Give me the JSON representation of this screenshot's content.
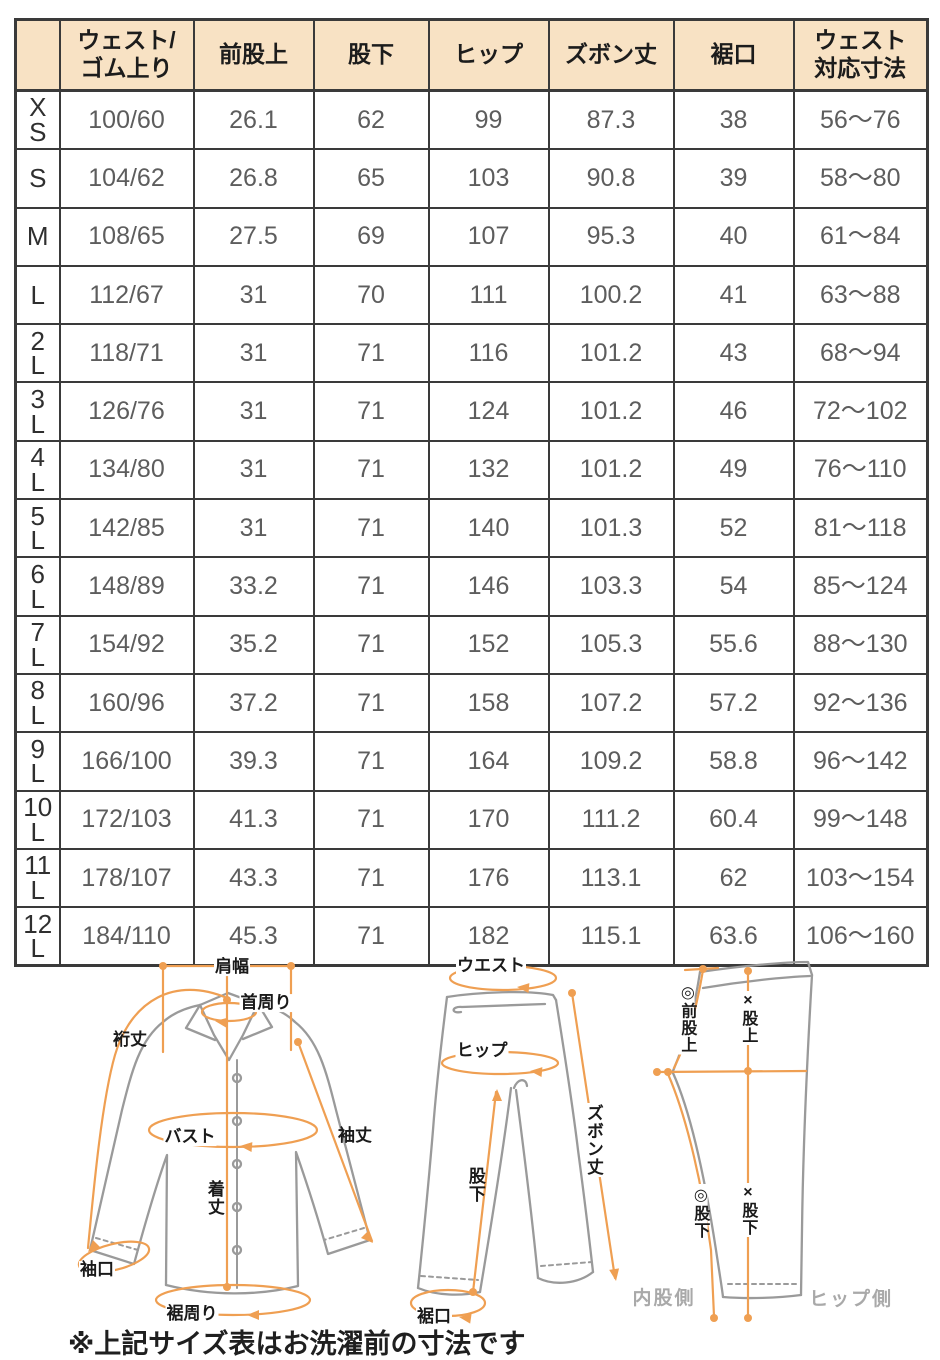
{
  "colors": {
    "header_bg": "#f8e2c4",
    "table_border": "#3a3a3a",
    "value_text": "#5d5d5d",
    "annotation_orange": "#ef9f52",
    "garment_outline_gray": "#9a9a9a",
    "side_label_gray": "#a9a9a9"
  },
  "table": {
    "header": [
      {
        "lines": [
          ""
        ]
      },
      {
        "lines": [
          "ウェスト/",
          "ゴム上り"
        ]
      },
      {
        "lines": [
          "前股上"
        ]
      },
      {
        "lines": [
          "股下"
        ]
      },
      {
        "lines": [
          "ヒップ"
        ]
      },
      {
        "lines": [
          "ズボン丈"
        ]
      },
      {
        "lines": [
          "裾口"
        ]
      },
      {
        "lines": [
          "ウェスト",
          "対応寸法"
        ]
      }
    ],
    "rows": [
      {
        "size_lines": [
          "X",
          "S"
        ],
        "values": [
          "100/60",
          "26.1",
          "62",
          "99",
          "87.3",
          "38",
          "56～76"
        ]
      },
      {
        "size_lines": [
          "S"
        ],
        "values": [
          "104/62",
          "26.8",
          "65",
          "103",
          "90.8",
          "39",
          "58～80"
        ]
      },
      {
        "size_lines": [
          "M"
        ],
        "values": [
          "108/65",
          "27.5",
          "69",
          "107",
          "95.3",
          "40",
          "61～84"
        ]
      },
      {
        "size_lines": [
          "L"
        ],
        "values": [
          "112/67",
          "31",
          "70",
          "111",
          "100.2",
          "41",
          "63～88"
        ]
      },
      {
        "size_lines": [
          "2",
          "L"
        ],
        "values": [
          "118/71",
          "31",
          "71",
          "116",
          "101.2",
          "43",
          "68～94"
        ]
      },
      {
        "size_lines": [
          "3",
          "L"
        ],
        "values": [
          "126/76",
          "31",
          "71",
          "124",
          "101.2",
          "46",
          "72～102"
        ]
      },
      {
        "size_lines": [
          "4",
          "L"
        ],
        "values": [
          "134/80",
          "31",
          "71",
          "132",
          "101.2",
          "49",
          "76～110"
        ]
      },
      {
        "size_lines": [
          "5",
          "L"
        ],
        "values": [
          "142/85",
          "31",
          "71",
          "140",
          "101.3",
          "52",
          "81～118"
        ]
      },
      {
        "size_lines": [
          "6",
          "L"
        ],
        "values": [
          "148/89",
          "33.2",
          "71",
          "146",
          "103.3",
          "54",
          "85～124"
        ]
      },
      {
        "size_lines": [
          "7",
          "L"
        ],
        "values": [
          "154/92",
          "35.2",
          "71",
          "152",
          "105.3",
          "55.6",
          "88～130"
        ]
      },
      {
        "size_lines": [
          "8",
          "L"
        ],
        "values": [
          "160/96",
          "37.2",
          "71",
          "158",
          "107.2",
          "57.2",
          "92～136"
        ]
      },
      {
        "size_lines": [
          "9",
          "L"
        ],
        "values": [
          "166/100",
          "39.3",
          "71",
          "164",
          "109.2",
          "58.8",
          "96～142"
        ]
      },
      {
        "size_lines": [
          "10",
          "L"
        ],
        "values": [
          "172/103",
          "41.3",
          "71",
          "170",
          "111.2",
          "60.4",
          "99～148"
        ]
      },
      {
        "size_lines": [
          "11",
          "L"
        ],
        "values": [
          "178/107",
          "43.3",
          "71",
          "176",
          "113.1",
          "62",
          "103～154"
        ]
      },
      {
        "size_lines": [
          "12",
          "L"
        ],
        "values": [
          "184/110",
          "45.3",
          "71",
          "182",
          "115.1",
          "63.6",
          "106～160"
        ]
      }
    ]
  },
  "diagram": {
    "shirt": {
      "labels": {
        "shoulder_width": "肩幅",
        "neck": "首周り",
        "yuki": "裄丈",
        "bust": "バスト",
        "body_length": "着丈",
        "sleeve_length": "袖丈",
        "cuff": "袖口",
        "hem_around": "裾周り"
      }
    },
    "pants_front": {
      "labels": {
        "waist": "ウエスト",
        "hip": "ヒップ",
        "pants_length": "ズボン丈",
        "inseam": "股下",
        "hem": "裾口"
      }
    },
    "pants_side": {
      "labels": {
        "front_rise": "◎前股上",
        "rise": "×股上",
        "inseam_marked": "◎股下",
        "inseam_x": "×股下",
        "inner_side": "内股側",
        "hip_side": "ヒップ側"
      }
    },
    "note": "※上記サイズ表はお洗濯前の寸法です"
  }
}
